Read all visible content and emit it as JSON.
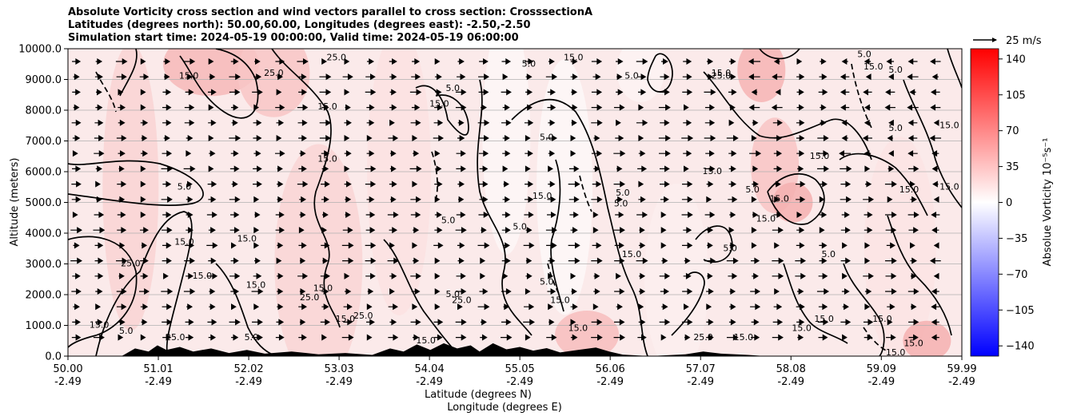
{
  "chart_data": {
    "type": "heatmap",
    "title_lines": [
      "Absolute Vorticity cross section and wind vectors parallel to cross section: CrosssectionA",
      "Latitudes (degrees north): 50.00,60.00, Longitudes (degrees east): -2.50,-2.50",
      "Simulation start time: 2024-05-19 00:00:00, Valid time: 2024-05-19 06:00:00"
    ],
    "ylabel": "Altitude (meters)",
    "xlabel_lines": [
      "Latitude (degrees N)",
      "Longitude (degrees E)"
    ],
    "ylim": [
      0,
      10000
    ],
    "y_ticks": [
      "0.0",
      "1000.0",
      "2000.0",
      "3000.0",
      "4000.0",
      "5000.0",
      "6000.0",
      "7000.0",
      "8000.0",
      "9000.0",
      "10000.0"
    ],
    "xlim": [
      50.0,
      59.99
    ],
    "x_ticks": [
      {
        "lat": "50.00",
        "lon": "-2.49"
      },
      {
        "lat": "51.01",
        "lon": "-2.49"
      },
      {
        "lat": "52.02",
        "lon": "-2.49"
      },
      {
        "lat": "53.03",
        "lon": "-2.49"
      },
      {
        "lat": "54.04",
        "lon": "-2.49"
      },
      {
        "lat": "55.05",
        "lon": "-2.49"
      },
      {
        "lat": "56.06",
        "lon": "-2.49"
      },
      {
        "lat": "57.07",
        "lon": "-2.49"
      },
      {
        "lat": "58.08",
        "lon": "-2.49"
      },
      {
        "lat": "59.09",
        "lon": "-2.49"
      },
      {
        "lat": "59.99",
        "lon": "-2.49"
      }
    ],
    "grid": true,
    "colorbar": {
      "label": "Absolue Vorticity 10⁻⁵s⁻¹",
      "range": [
        -150,
        150
      ],
      "ticks": [
        "140",
        "105",
        "70",
        "35",
        "0",
        "−35",
        "−70",
        "−105",
        "−140"
      ],
      "colors": [
        "#0000ff",
        "#ffffff",
        "#ff0000"
      ]
    },
    "wind_reference": {
      "label": "25 m/s"
    },
    "contour_labels": [
      {
        "text": "25.0",
        "lat": 52.3,
        "alt": 9200
      },
      {
        "text": "25.0",
        "lat": 53.0,
        "alt": 9700
      },
      {
        "text": "15.0",
        "lat": 51.35,
        "alt": 9100
      },
      {
        "text": "15.0",
        "lat": 52.9,
        "alt": 8100
      },
      {
        "text": "15.0",
        "lat": 54.15,
        "alt": 8200
      },
      {
        "text": "5.0",
        "lat": 54.3,
        "alt": 8700
      },
      {
        "text": "5.0",
        "lat": 55.15,
        "alt": 9500
      },
      {
        "text": "5.0",
        "lat": 56.3,
        "alt": 9100
      },
      {
        "text": "15.0",
        "lat": 55.65,
        "alt": 9700
      },
      {
        "text": "5.0",
        "lat": 55.35,
        "alt": 7100
      },
      {
        "text": "15.0",
        "lat": 57.3,
        "alt": 9200
      },
      {
        "text": "25.0",
        "lat": 57.3,
        "alt": 9100
      },
      {
        "text": "5.0",
        "lat": 59.25,
        "alt": 9300
      },
      {
        "text": "15.0",
        "lat": 58.4,
        "alt": 6500
      },
      {
        "text": "15.0",
        "lat": 57.2,
        "alt": 6000
      },
      {
        "text": "15.0",
        "lat": 52.9,
        "alt": 6400
      },
      {
        "text": "5.0",
        "lat": 51.3,
        "alt": 5500
      },
      {
        "text": "5.0",
        "lat": 56.2,
        "alt": 5300
      },
      {
        "text": "5.0",
        "lat": 56.18,
        "alt": 4950
      },
      {
        "text": "15.0",
        "lat": 55.3,
        "alt": 5200
      },
      {
        "text": "5.0",
        "lat": 55.05,
        "alt": 4200
      },
      {
        "text": "5.0",
        "lat": 54.25,
        "alt": 4400
      },
      {
        "text": "15.0",
        "lat": 57.8,
        "alt": 4450
      },
      {
        "text": "15.0",
        "lat": 57.95,
        "alt": 5100
      },
      {
        "text": "5.0",
        "lat": 57.65,
        "alt": 5400
      },
      {
        "text": "15.0",
        "lat": 51.3,
        "alt": 3700
      },
      {
        "text": "15.0",
        "lat": 52.0,
        "alt": 3800
      },
      {
        "text": "25.0",
        "lat": 50.7,
        "alt": 3000
      },
      {
        "text": "15.0",
        "lat": 51.5,
        "alt": 2600
      },
      {
        "text": "15.0",
        "lat": 52.1,
        "alt": 2300
      },
      {
        "text": "15.0",
        "lat": 52.85,
        "alt": 2200
      },
      {
        "text": "25.0",
        "lat": 52.7,
        "alt": 1900
      },
      {
        "text": "25.0",
        "lat": 53.3,
        "alt": 1300
      },
      {
        "text": "15.0",
        "lat": 53.1,
        "alt": 1200
      },
      {
        "text": "15.0",
        "lat": 56.3,
        "alt": 3300
      },
      {
        "text": "5.0",
        "lat": 57.4,
        "alt": 3500
      },
      {
        "text": "5.0",
        "lat": 58.5,
        "alt": 3300
      },
      {
        "text": "15.0",
        "lat": 59.85,
        "alt": 5500
      },
      {
        "text": "15.0",
        "lat": 59.4,
        "alt": 5400
      },
      {
        "text": "5.0",
        "lat": 54.3,
        "alt": 2000
      },
      {
        "text": "25.0",
        "lat": 54.4,
        "alt": 1800
      },
      {
        "text": "15.0",
        "lat": 55.5,
        "alt": 1800
      },
      {
        "text": "5.0",
        "lat": 55.35,
        "alt": 2400
      },
      {
        "text": "15.0",
        "lat": 59.1,
        "alt": 1200
      },
      {
        "text": "15.0",
        "lat": 58.2,
        "alt": 900
      },
      {
        "text": "15.0",
        "lat": 58.45,
        "alt": 1200
      },
      {
        "text": "5.0",
        "lat": 50.65,
        "alt": 800
      },
      {
        "text": "15.0",
        "lat": 50.35,
        "alt": 1000
      },
      {
        "text": "25.0",
        "lat": 51.2,
        "alt": 600
      },
      {
        "text": "5.0",
        "lat": 52.05,
        "alt": 600
      },
      {
        "text": "15.0",
        "lat": 54.0,
        "alt": 500
      },
      {
        "text": "15.0",
        "lat": 55.7,
        "alt": 900
      },
      {
        "text": "15.0",
        "lat": 57.55,
        "alt": 600
      },
      {
        "text": "25.0",
        "lat": 57.1,
        "alt": 600
      },
      {
        "text": "15.0",
        "lat": 59.45,
        "alt": 400
      },
      {
        "text": "15.0",
        "lat": 59.25,
        "alt": 100
      },
      {
        "text": "5.0",
        "lat": 59.25,
        "alt": 7400
      },
      {
        "text": "15.0",
        "lat": 59.85,
        "alt": 7500
      },
      {
        "text": "15.0",
        "lat": 59.0,
        "alt": 9400
      },
      {
        "text": "5.0",
        "lat": 58.9,
        "alt": 9800
      }
    ]
  }
}
